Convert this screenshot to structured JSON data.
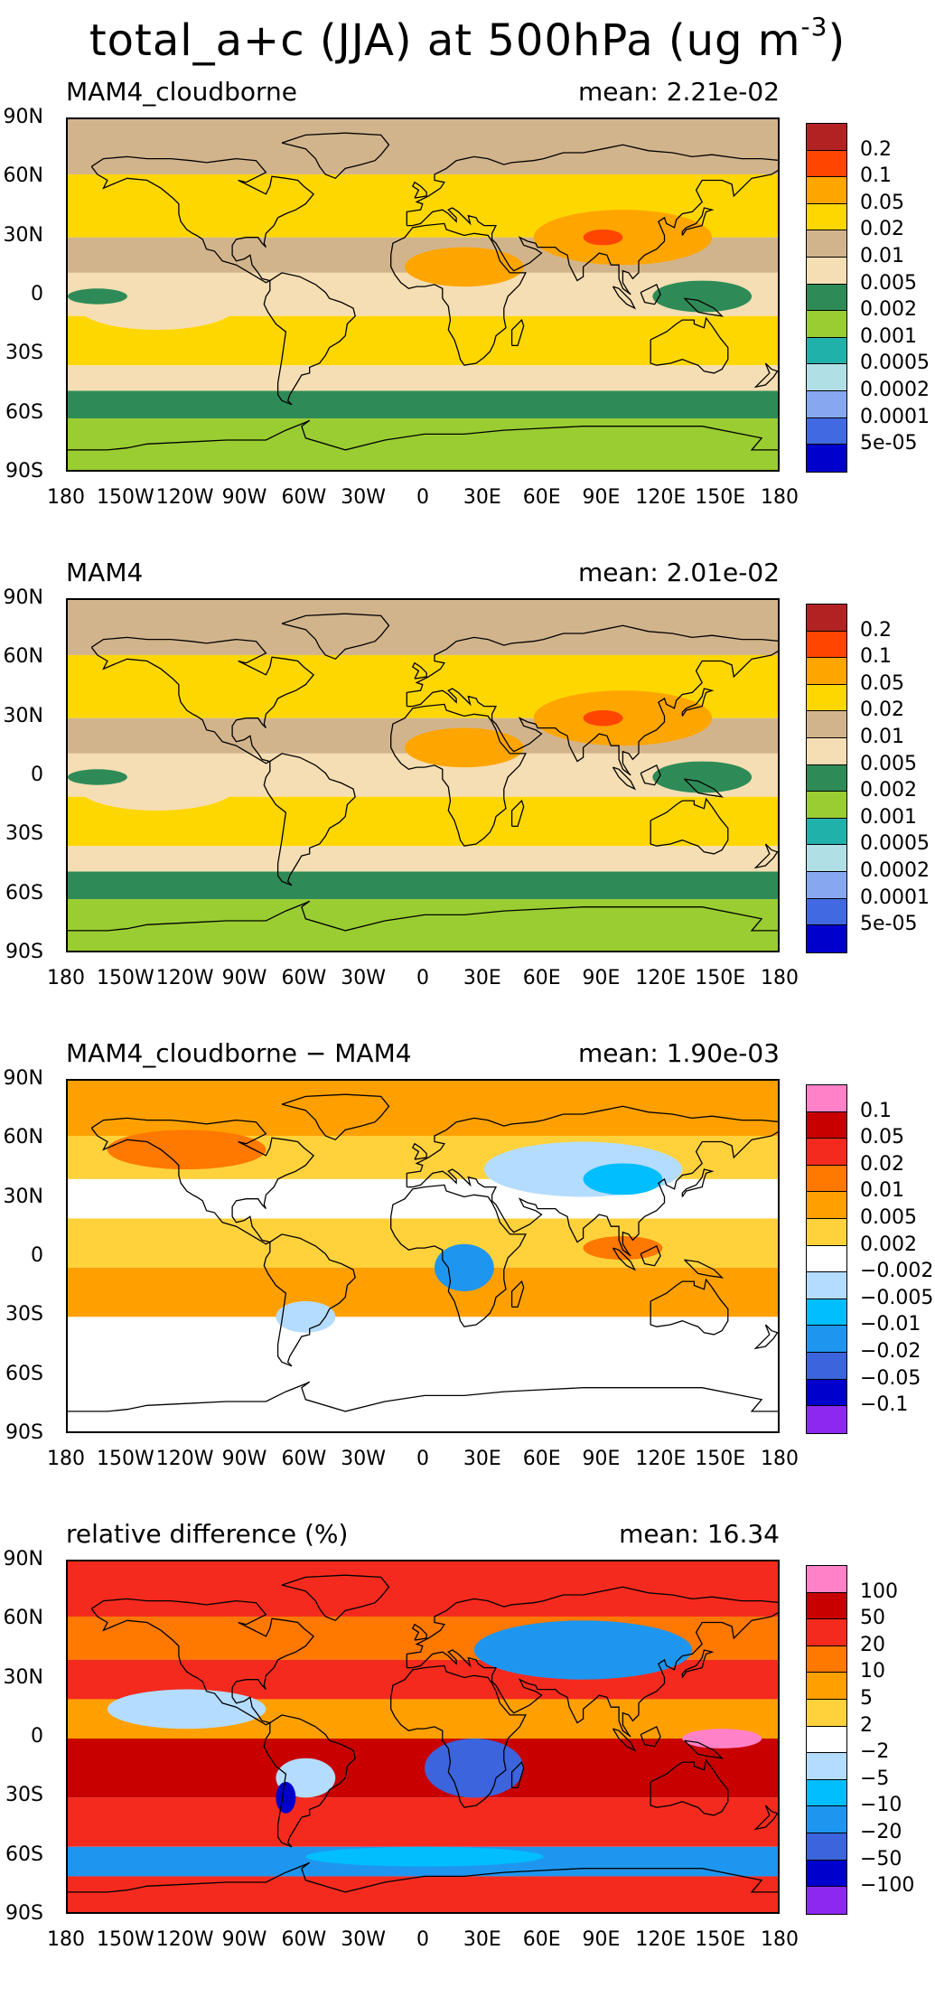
{
  "title": "total_a+c (JJA) at 500hPa (ug m",
  "title_superscript": "-3",
  "title_close": ")",
  "lat_ticks": [
    "90N",
    "60N",
    "30N",
    "0",
    "30S",
    "60S",
    "90S"
  ],
  "lon_ticks": [
    "180",
    "150W",
    "120W",
    "90W",
    "60W",
    "30W",
    "0",
    "30E",
    "60E",
    "90E",
    "120E",
    "150E",
    "180"
  ],
  "panels": [
    {
      "label": "MAM4_cloudborne",
      "mean": "mean: 2.21e-02",
      "scheme": "abs",
      "colorbar_colors": [
        "#b22222",
        "#ff4500",
        "#ffa500",
        "#ffd700",
        "#d2b48c",
        "#f5deb3",
        "#2e8b57",
        "#9acd32",
        "#20b2aa",
        "#b0e0e6",
        "#87a8f0",
        "#4169e1",
        "#0000cd"
      ],
      "colorbar_labels": [
        "0.2",
        "0.1",
        "0.05",
        "0.02",
        "0.01",
        "0.005",
        "0.002",
        "0.001",
        "0.0005",
        "0.0002",
        "0.0001",
        "5e-05"
      ]
    },
    {
      "label": "MAM4",
      "mean": "mean: 2.01e-02",
      "scheme": "abs",
      "colorbar_colors": [
        "#b22222",
        "#ff4500",
        "#ffa500",
        "#ffd700",
        "#d2b48c",
        "#f5deb3",
        "#2e8b57",
        "#9acd32",
        "#20b2aa",
        "#b0e0e6",
        "#87a8f0",
        "#4169e1",
        "#0000cd"
      ],
      "colorbar_labels": [
        "0.2",
        "0.1",
        "0.05",
        "0.02",
        "0.01",
        "0.005",
        "0.002",
        "0.001",
        "0.0005",
        "0.0002",
        "0.0001",
        "5e-05"
      ]
    },
    {
      "label": "MAM4_cloudborne − MAM4",
      "mean": "mean: 1.90e-03",
      "scheme": "diff",
      "colorbar_colors": [
        "#ff82c8",
        "#c80000",
        "#f52a1e",
        "#ff7800",
        "#ffa000",
        "#ffd23c",
        "#ffffff",
        "#b4dcff",
        "#00beff",
        "#1e96f0",
        "#3c64dc",
        "#0000cd",
        "#8c28f0"
      ],
      "colorbar_labels": [
        "0.1",
        "0.05",
        "0.02",
        "0.01",
        "0.005",
        "0.002",
        "−0.002",
        "−0.005",
        "−0.01",
        "−0.02",
        "−0.05",
        "−0.1"
      ]
    },
    {
      "label": "relative difference (%)",
      "mean": "mean: 16.34",
      "scheme": "rel",
      "colorbar_colors": [
        "#ff82c8",
        "#c80000",
        "#f52a1e",
        "#ff7800",
        "#ffa000",
        "#ffd23c",
        "#ffffff",
        "#b4dcff",
        "#00beff",
        "#1e96f0",
        "#3c64dc",
        "#0000cd",
        "#8c28f0"
      ],
      "colorbar_labels": [
        "100",
        "50",
        "20",
        "10",
        "5",
        "2",
        "−2",
        "−5",
        "−10",
        "−20",
        "−50",
        "−100"
      ]
    }
  ]
}
